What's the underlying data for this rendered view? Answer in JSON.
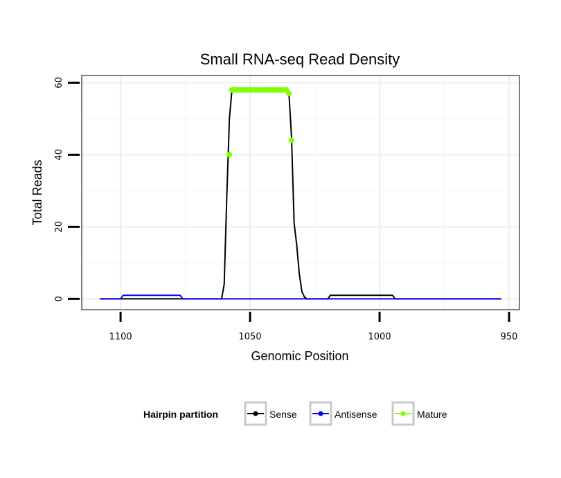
{
  "chart_data": {
    "type": "line",
    "title": "Small RNA-seq Read Density",
    "xlabel": "Genomic Position",
    "ylabel": "Total Reads",
    "xlim": [
      1115,
      946
    ],
    "x_reversed": true,
    "ylim": [
      -3,
      62
    ],
    "x_ticks": [
      1100,
      1050,
      1000,
      950
    ],
    "y_ticks": [
      0,
      20,
      40,
      60
    ],
    "grid": true,
    "legend": {
      "title": "Hairpin partition",
      "position": "bottom",
      "entries": [
        {
          "label": "Sense",
          "color": "#000000"
        },
        {
          "label": "Antisense",
          "color": "#0000ff"
        },
        {
          "label": "Mature",
          "color": "#7fff00"
        }
      ]
    },
    "series": [
      {
        "name": "Sense",
        "color": "#000000",
        "x": [
          1108,
          1061,
          1060,
          1059,
          1058,
          1057,
          1045,
          1036,
          1035,
          1034,
          1033,
          1032,
          1031,
          1030,
          1029,
          1028,
          1020,
          1019,
          995,
          994,
          953
        ],
        "y": [
          0,
          0,
          4,
          28,
          50,
          58,
          58,
          58,
          57,
          45,
          21,
          15,
          7,
          2,
          0.5,
          0,
          0,
          1,
          1,
          0,
          0
        ]
      },
      {
        "name": "Antisense",
        "color": "#0000ff",
        "x": [
          1108,
          1100,
          1099,
          1077,
          1076,
          1030,
          995,
          994,
          953
        ],
        "y": [
          0,
          0,
          1,
          1,
          0,
          0,
          0,
          0,
          0
        ]
      },
      {
        "name": "Mature",
        "color": "#7fff00",
        "x": [
          1058,
          1057,
          1056,
          1055,
          1054,
          1053,
          1052,
          1051,
          1050,
          1049,
          1048,
          1047,
          1046,
          1045,
          1044,
          1043,
          1042,
          1041,
          1040,
          1039,
          1038,
          1037,
          1036,
          1035,
          1034
        ],
        "y": [
          40,
          58,
          58,
          58,
          58,
          58,
          58,
          58,
          58,
          58,
          58,
          58,
          58,
          58,
          58,
          58,
          58,
          58,
          58,
          58,
          58,
          58,
          58,
          57,
          44
        ]
      }
    ]
  }
}
